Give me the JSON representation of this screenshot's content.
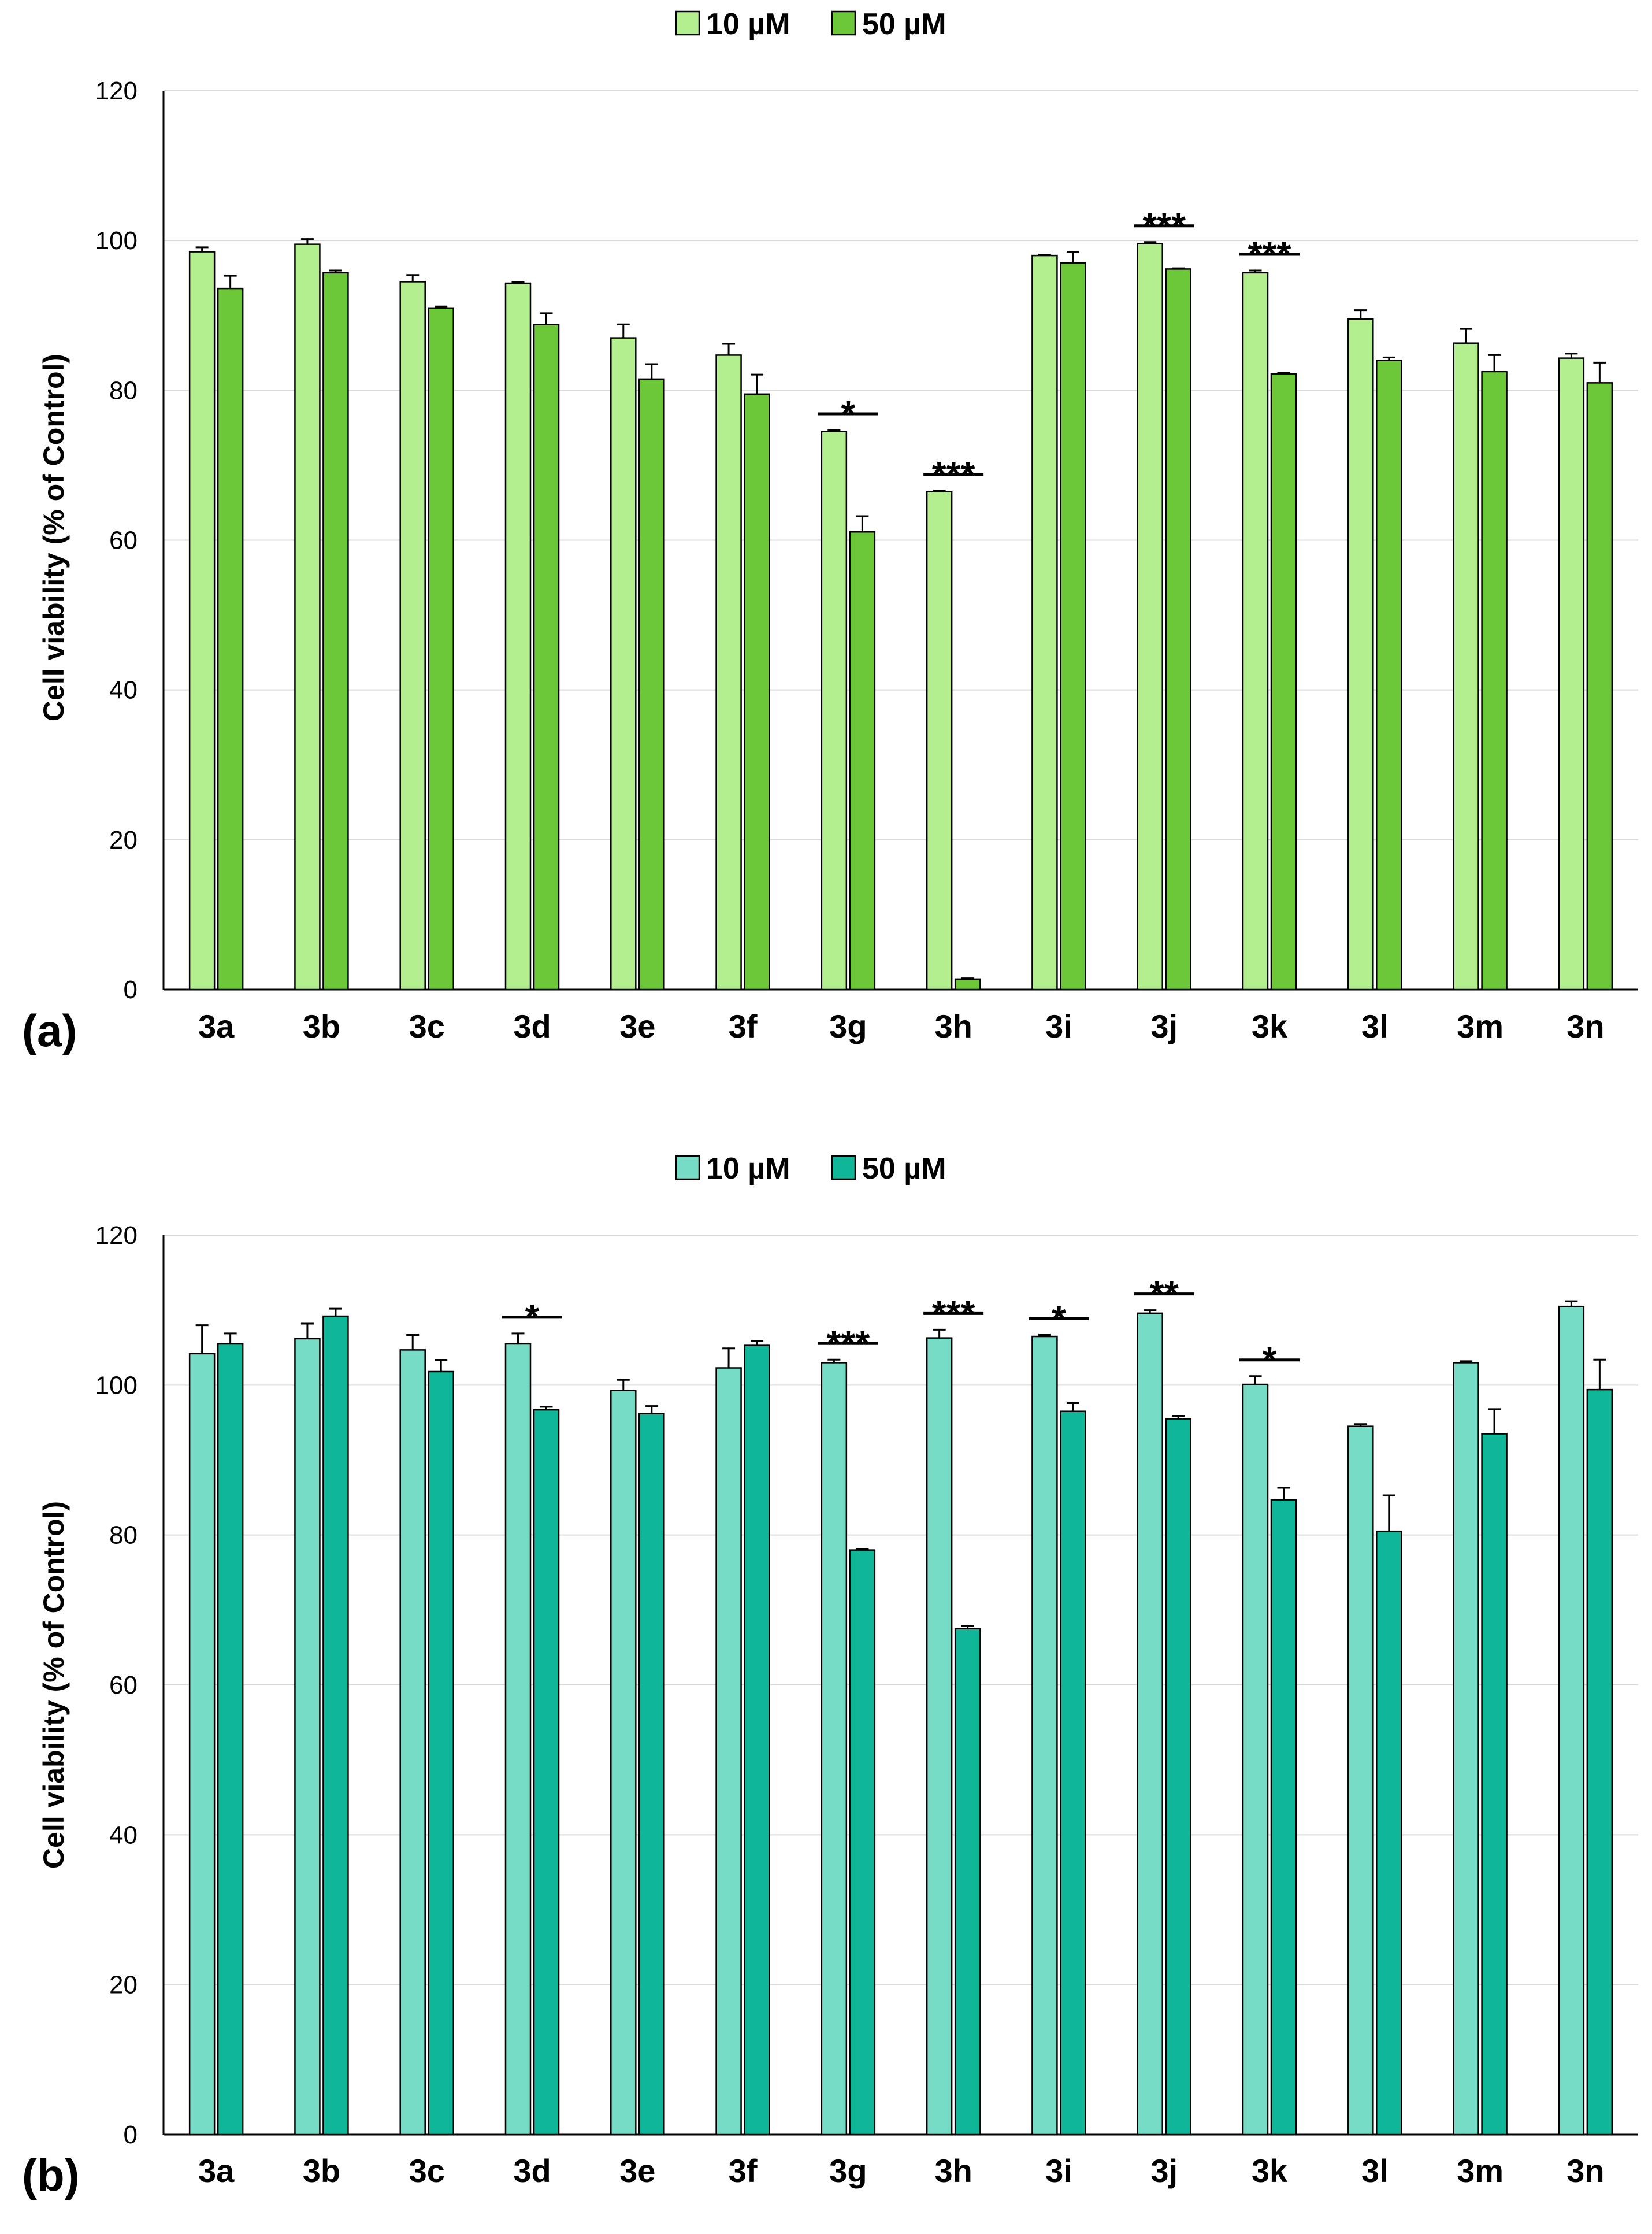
{
  "chart_data": [
    {
      "type": "bar",
      "panel_label": "(a)",
      "ylabel": "Cell viability (% of Control)",
      "xlabel": "",
      "ylim": [
        0,
        120
      ],
      "yticks": [
        0,
        20,
        40,
        60,
        80,
        100,
        120
      ],
      "grid": true,
      "legend_position": "top-center",
      "categories": [
        "3a",
        "3b",
        "3c",
        "3d",
        "3e",
        "3f",
        "3g",
        "3h",
        "3i",
        "3j",
        "3k",
        "3l",
        "3m",
        "3n"
      ],
      "series": [
        {
          "name": "10 µM",
          "color": "#b3ee8f",
          "values": [
            98.5,
            99.5,
            94.5,
            94.3,
            87,
            84.7,
            74.5,
            66.5,
            98,
            99.6,
            95.7,
            89.5,
            86.3,
            84.3
          ],
          "errors": [
            0.6,
            0.7,
            0.9,
            0.2,
            1.8,
            1.5,
            0.2,
            0.1,
            0.1,
            0.2,
            0.3,
            1.2,
            1.9,
            0.6
          ]
        },
        {
          "name": "50 µM",
          "color": "#6cc839",
          "values": [
            93.6,
            95.7,
            91,
            88.8,
            81.5,
            79.5,
            61.1,
            1.4,
            97,
            96.2,
            82.2,
            84,
            82.5,
            81
          ],
          "errors": [
            1.7,
            0.3,
            0.2,
            1.5,
            2,
            2.6,
            2.1,
            0.1,
            1.5,
            0.1,
            0.1,
            0.4,
            2.2,
            2.7
          ]
        }
      ],
      "significance": [
        {
          "category": "3g",
          "label": "*"
        },
        {
          "category": "3h",
          "label": "***"
        },
        {
          "category": "3j",
          "label": "***"
        },
        {
          "category": "3k",
          "label": "***"
        }
      ]
    },
    {
      "type": "bar",
      "panel_label": "(b)",
      "ylabel": "Cell viability (% of Control)",
      "xlabel": "",
      "ylim": [
        0,
        120
      ],
      "yticks": [
        0,
        20,
        40,
        60,
        80,
        100,
        120
      ],
      "grid": true,
      "legend_position": "top-center",
      "categories": [
        "3a",
        "3b",
        "3c",
        "3d",
        "3e",
        "3f",
        "3g",
        "3h",
        "3i",
        "3j",
        "3k",
        "3l",
        "3m",
        "3n"
      ],
      "series": [
        {
          "name": "10 µM",
          "color": "#76dcc6",
          "values": [
            104.2,
            106.2,
            104.7,
            105.5,
            99.3,
            102.3,
            103,
            106.3,
            106.5,
            109.6,
            100.1,
            94.5,
            103,
            110.5
          ],
          "errors": [
            3.8,
            2.0,
            2.0,
            1.4,
            1.4,
            2.6,
            0.4,
            1.1,
            0.2,
            0.4,
            1.1,
            0.3,
            0.2,
            0.7
          ]
        },
        {
          "name": "50 µM",
          "color": "#0fb798",
          "values": [
            105.5,
            109.2,
            101.8,
            96.7,
            96.2,
            105.3,
            78,
            67.5,
            96.5,
            95.5,
            84.7,
            80.5,
            93.5,
            99.4
          ],
          "errors": [
            1.4,
            1.0,
            1.5,
            0.4,
            1.0,
            0.6,
            0.1,
            0.4,
            1.1,
            0.4,
            1.6,
            4.8,
            3.3,
            4.0
          ]
        }
      ],
      "significance": [
        {
          "category": "3d",
          "label": "*"
        },
        {
          "category": "3g",
          "label": "***"
        },
        {
          "category": "3h",
          "label": "***"
        },
        {
          "category": "3i",
          "label": "*"
        },
        {
          "category": "3j",
          "label": "**"
        },
        {
          "category": "3k",
          "label": "*"
        }
      ]
    }
  ]
}
